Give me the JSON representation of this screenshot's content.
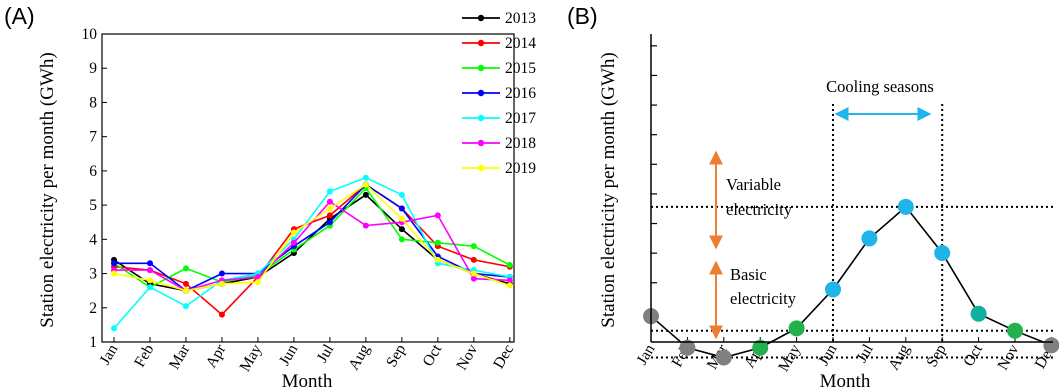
{
  "chart_data": [
    {
      "panel_label": "(A)",
      "type": "line",
      "xlabel": "Month",
      "ylabel": "Station electricity per month (GWh)",
      "categories": [
        "Jan",
        "Feb",
        "Mar",
        "Apr",
        "May",
        "Jun",
        "Jul",
        "Aug",
        "Sep",
        "Oct",
        "Nov",
        "Dec"
      ],
      "ylim": [
        1,
        10
      ],
      "yticks": [
        "1",
        "2",
        "3",
        "4",
        "5",
        "6",
        "7",
        "8",
        "9",
        "10"
      ],
      "legend_position": "top-right",
      "series": [
        {
          "name": "2013",
          "color": "#000000",
          "values": [
            3.4,
            2.7,
            2.5,
            2.7,
            2.9,
            3.6,
            4.6,
            5.3,
            4.3,
            3.4,
            3.0,
            2.7
          ]
        },
        {
          "name": "2014",
          "color": "#ff0000",
          "values": [
            3.2,
            3.1,
            2.7,
            1.8,
            2.9,
            4.3,
            4.7,
            5.6,
            4.9,
            3.8,
            3.4,
            3.2
          ]
        },
        {
          "name": "2015",
          "color": "#00ff00",
          "values": [
            3.3,
            2.6,
            3.15,
            2.75,
            2.95,
            3.7,
            4.4,
            5.5,
            4.0,
            3.9,
            3.8,
            3.25
          ]
        },
        {
          "name": "2016",
          "color": "#0000ff",
          "values": [
            3.3,
            3.3,
            2.5,
            3.0,
            3.0,
            3.8,
            4.5,
            5.6,
            4.9,
            3.5,
            3.0,
            2.9
          ]
        },
        {
          "name": "2017",
          "color": "#00ffff",
          "values": [
            1.4,
            2.6,
            2.05,
            2.8,
            3.0,
            4.0,
            5.4,
            5.8,
            5.3,
            3.3,
            3.1,
            2.9
          ]
        },
        {
          "name": "2018",
          "color": "#ff00ff",
          "values": [
            3.1,
            3.1,
            2.5,
            2.8,
            2.9,
            3.9,
            5.1,
            4.4,
            4.5,
            4.7,
            2.85,
            2.8
          ]
        },
        {
          "name": "2019",
          "color": "#ffff00",
          "values": [
            3.0,
            2.8,
            2.5,
            2.7,
            2.75,
            4.2,
            4.9,
            5.6,
            4.6,
            3.4,
            3.0,
            2.65
          ]
        }
      ]
    },
    {
      "panel_label": "(B)",
      "type": "line",
      "xlabel": "Month",
      "ylabel": "Station electricity per month (GWh)",
      "categories": [
        "Jan",
        "Feb",
        "Mar",
        "Apr",
        "May",
        "Jun",
        "Jul",
        "Aug",
        "Sep",
        "Oct",
        "Nov",
        "Dec"
      ],
      "y_tick_labels_shown": false,
      "values": [
        4.05,
        3.4,
        3.2,
        3.4,
        3.8,
        4.6,
        5.65,
        6.3,
        5.35,
        4.1,
        3.75,
        3.45
      ],
      "point_groups": [
        "gray",
        "gray",
        "gray",
        "green",
        "green",
        "blue",
        "blue",
        "blue",
        "blue",
        "blue-green",
        "green",
        "gray"
      ],
      "point_colors": {
        "gray": "#808080",
        "green": "#22b14c",
        "blue": "#1fb4ea",
        "blue-green": "#10b0a0"
      },
      "reference_lines": {
        "basic_level": 3.2,
        "mid_level": 3.75,
        "peak_level": 6.3
      },
      "cooling_season_range": [
        "Jun",
        "Sep"
      ],
      "annotations": {
        "cooling": "Cooling seasons",
        "variable_line1": "Variable",
        "variable_line2": "electricity",
        "basic_line1": "Basic",
        "basic_line2": "electricity"
      },
      "arrow_colors": {
        "cooling": "#1fb4ea",
        "electricity": "#ed7d31"
      }
    }
  ]
}
